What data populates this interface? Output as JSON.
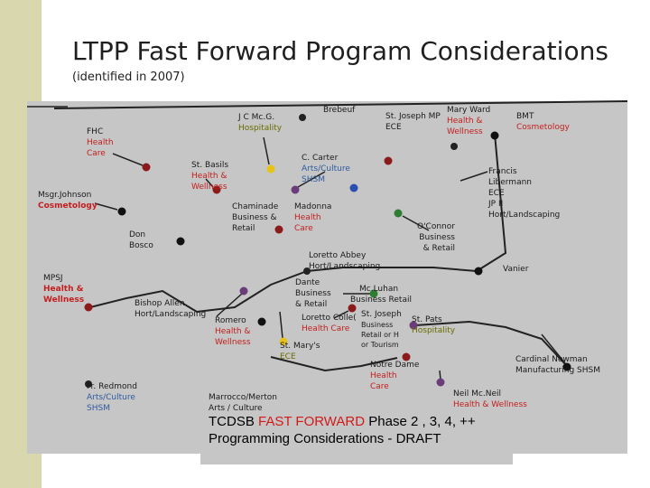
{
  "title": "LTPP Fast Forward Program Considerations",
  "subtitle": "(identified in 2007)",
  "schools": {
    "fhc": {
      "name": "FHC",
      "l1": "Health",
      "l2": "Care"
    },
    "msgr_johnson": {
      "name": "Msgr.Johnson",
      "program": "Cosmetology"
    },
    "mpsj": {
      "name": "MPSJ",
      "l1": "Health &",
      "l2": "Wellness"
    },
    "fr_redmond": {
      "name": "Fr. Redmond",
      "l1": "Arts/Culture",
      "l2": "SHSM"
    },
    "don_bosco": {
      "l1": "Don",
      "l2": "Bosco"
    },
    "st_basil": {
      "name": "St. Basils",
      "l1": "Health &",
      "l2": "Wellness"
    },
    "jc_mcg": {
      "name": "J C Mc.G.",
      "program": "Hospitality"
    },
    "brebeuf": {
      "name": "Brebeuf"
    },
    "st_joseph_mp": {
      "name": "St. Joseph MP",
      "program": "ECE"
    },
    "mary_ward": {
      "name": "Mary Ward",
      "l1": "Health &",
      "l2": "Wellness"
    },
    "bmt": {
      "name": "BMT",
      "program": "Cosmetology"
    },
    "c_carter": {
      "name": "C. Carter",
      "l1": "Arts/Culture",
      "l2": "SHSM"
    },
    "chaminade": {
      "l1": "Chaminade",
      "l2": "Business &",
      "l3": "Retail"
    },
    "madonna": {
      "name": "Madonna",
      "l1": "Health",
      "l2": "Care"
    },
    "francis_libermann": {
      "l1": "Francis",
      "l2": "Libermann",
      "l3": "ECE",
      "l4": "JP II",
      "l5": "Hort/Landscaping"
    },
    "oconnor": {
      "name": "O'Connor",
      "l1": "Business",
      "l2": "& Retail"
    },
    "loretto_abbey": {
      "name": "Loretto Abbey",
      "program": "Hort/Landscaping"
    },
    "vanier": {
      "name": "Vanier"
    },
    "dante": {
      "name": "Dante",
      "l1": "Business",
      "l2": "& Retail"
    },
    "mcluhan": {
      "name": "Mc.Luhan",
      "program": "Business Retail"
    },
    "bishop_allen": {
      "name": "Bishop Allen",
      "program": "Hort/Landscaping"
    },
    "romero": {
      "name": "Romero",
      "l1": "Health &",
      "l2": "Wellness"
    },
    "loretto_college": {
      "name": "Loretto Colle(",
      "program": "Health Care"
    },
    "st_joseph": {
      "name": "St. Joseph",
      "l1": "Business",
      "l2": "Retail or H",
      "l3": "or Tourism"
    },
    "st_pats": {
      "name": "St. Pats",
      "program": "Hospitality"
    },
    "st_marys": {
      "name": "St. Mary's",
      "program": "ECE"
    },
    "notre_dame": {
      "name": "Notre Dame",
      "l1": "Health",
      "l2": "Care"
    },
    "cardinal_newman": {
      "name": "Cardinal Newman",
      "program": "Manufacturing SHSM"
    },
    "neil_mcneil": {
      "name": "Neil Mc.Neil",
      "program": "Health & Wellness"
    },
    "marrocco_merton": {
      "name": "Marrocco/Merton",
      "program": "Arts / Culture"
    }
  },
  "footer": {
    "line1_prefix": "TCDSB ",
    "line1_highlight": "FAST FORWARD",
    "line1_suffix": " Phase 2 , 3, 4, ++",
    "line2": "Programming Considerations   - DRAFT"
  },
  "colors": {
    "red_dot": "#8b1a1a",
    "blue_dot": "#2a4fb0",
    "yellow_dot": "#e6c21a",
    "purple_dot": "#6a3d7a",
    "green_dot": "#2e7d32",
    "black_dot": "#111111"
  }
}
